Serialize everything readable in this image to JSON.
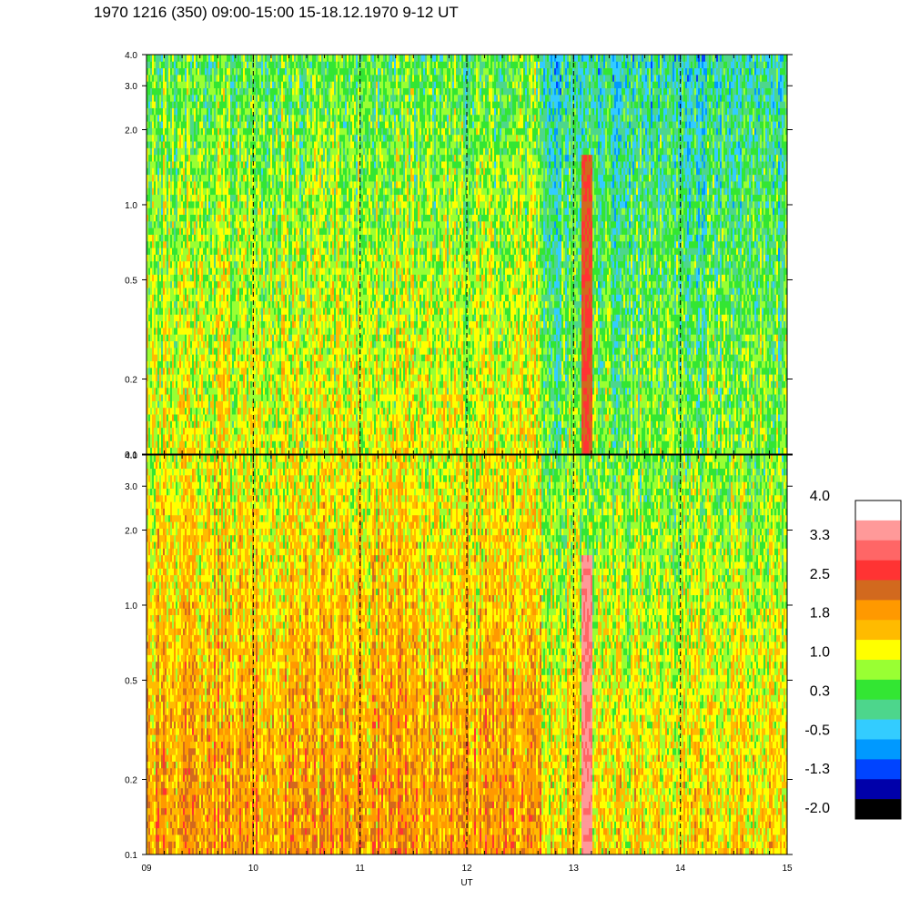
{
  "title": "1970 1216 (350) 09:00-15:00 15-18.12.1970  9-12 UT",
  "chart_data": [
    {
      "type": "heatmap",
      "panel": "top",
      "x_label": "",
      "y_scale": "log",
      "ylim": [
        0.1,
        4.0
      ],
      "y_ticks": [
        "0.1",
        "0.2",
        "0.5",
        "1.0",
        "2.0",
        "3.0",
        "4.0"
      ],
      "xlim": [
        9,
        15
      ],
      "dominant_levels": {
        "low_freq": 1.0,
        "high_freq": 0.3
      },
      "features": [
        {
          "x": 13.12,
          "level": 2.5,
          "description": "narrow bright vertical band"
        }
      ]
    },
    {
      "type": "heatmap",
      "panel": "bottom",
      "x_label": "UT",
      "y_scale": "log",
      "ylim": [
        0.1,
        4.0
      ],
      "y_ticks": [
        "0.1",
        "0.2",
        "0.5",
        "1.0",
        "2.0",
        "3.0",
        "4.0"
      ],
      "xlim": [
        9,
        15
      ],
      "x_ticks": [
        "09",
        "10",
        "11",
        "12",
        "13",
        "14",
        "15"
      ],
      "dominant_levels": {
        "low_freq": 1.8,
        "high_freq": 1.0
      },
      "features": [
        {
          "x": 13.12,
          "level": 3.3,
          "description": "narrow bright vertical band"
        }
      ]
    }
  ],
  "colorbar": {
    "labels": [
      "4.0",
      "3.3",
      "2.5",
      "1.8",
      "1.0",
      "0.3",
      "-0.5",
      "-1.3",
      "-2.0"
    ],
    "colors": [
      "#ffffff",
      "#ff9999",
      "#ff6666",
      "#ff3333",
      "#d2691e",
      "#ff9900",
      "#ffbb00",
      "#ffff00",
      "#99ff33",
      "#33e633",
      "#4dd68c",
      "#33ccff",
      "#0099ff",
      "#0044ff",
      "#0000aa",
      "#000000"
    ]
  },
  "vertical_markers_ut": [
    10,
    11,
    12,
    13,
    14
  ]
}
